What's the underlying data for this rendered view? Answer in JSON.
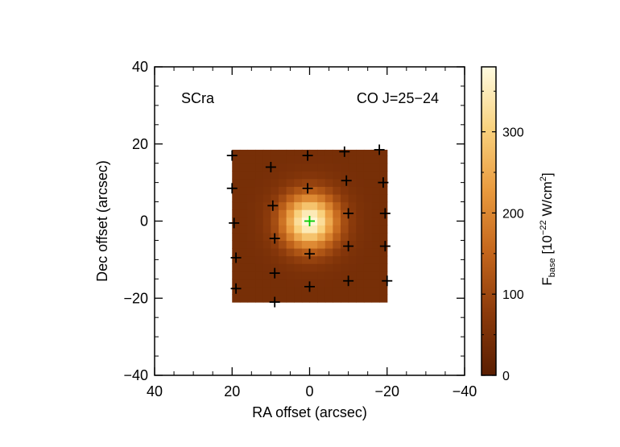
{
  "chart_data": {
    "type": "heatmap",
    "source_label": "SCra",
    "line_label": "CO J=25−24",
    "xlabel": "RA offset (arcsec)",
    "ylabel": "Dec offset (arcsec)",
    "xlim": [
      40,
      -40
    ],
    "ylim": [
      -40,
      40
    ],
    "x_ticks": [
      40,
      20,
      0,
      -20,
      -40
    ],
    "x_tick_labels": [
      "40",
      "20",
      "0",
      "−20",
      "−40"
    ],
    "y_ticks": [
      40,
      20,
      0,
      -20,
      -40
    ],
    "y_tick_labels": [
      "40",
      "20",
      "0",
      "−20",
      "−40"
    ],
    "map_extent": {
      "x": [
        20,
        -20
      ],
      "y": [
        -21,
        18.5
      ]
    },
    "peak": {
      "x": 0,
      "y": 0,
      "value": 380
    },
    "background_value": 45,
    "gaussian_sigma_arcsec": 5,
    "spaxels": [
      {
        "x": 20,
        "y": 17
      },
      {
        "x": 10,
        "y": 14
      },
      {
        "x": 0.5,
        "y": 17
      },
      {
        "x": -9,
        "y": 18
      },
      {
        "x": -18,
        "y": 18.5
      },
      {
        "x": 20,
        "y": 8.5
      },
      {
        "x": 9.5,
        "y": 4
      },
      {
        "x": 0.5,
        "y": 8.5
      },
      {
        "x": -9.5,
        "y": 10.5
      },
      {
        "x": -19,
        "y": 10
      },
      {
        "x": 19.5,
        "y": -0.5
      },
      {
        "x": 9,
        "y": -4.5
      },
      {
        "x": -10,
        "y": 2
      },
      {
        "x": -19.5,
        "y": 2
      },
      {
        "x": 19,
        "y": -9.5
      },
      {
        "x": 9,
        "y": -13.5
      },
      {
        "x": 0,
        "y": -8.5
      },
      {
        "x": -10,
        "y": -6.5
      },
      {
        "x": -19.5,
        "y": -6.5
      },
      {
        "x": 19,
        "y": -17.5
      },
      {
        "x": 9,
        "y": -21
      },
      {
        "x": 0,
        "y": -17
      },
      {
        "x": -10,
        "y": -15.5
      },
      {
        "x": -20,
        "y": -15.5
      }
    ],
    "central_spaxel": {
      "x": 0,
      "y": 0,
      "color": "#00cc00"
    },
    "colorbar": {
      "range": [
        0,
        380
      ],
      "ticks": [
        0,
        100,
        200,
        300
      ],
      "tick_labels": [
        "0",
        "100",
        "200",
        "300"
      ],
      "label_main": "F",
      "label_sub": "base",
      "label_unit_prefix": " [10",
      "label_exp": "−22",
      "label_unit_mid": " W/cm",
      "label_exp2": "2",
      "label_close": "]",
      "colors": [
        "#5a1e02",
        "#8b3a0b",
        "#c4661c",
        "#e99a3e",
        "#f9d27e",
        "#fffbe0"
      ]
    }
  }
}
